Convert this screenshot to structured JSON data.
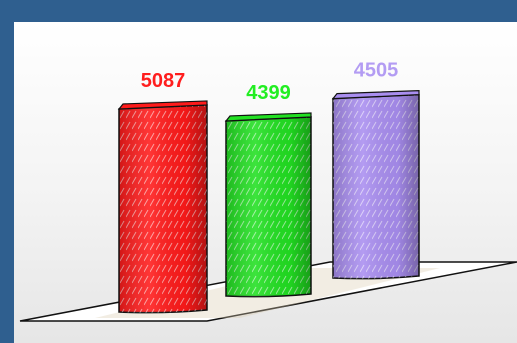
{
  "chart_data": {
    "type": "bar",
    "title": "",
    "xlabel": "",
    "ylabel": "",
    "categories": [
      "",
      "",
      ""
    ],
    "values": [
      5087,
      4399,
      4505
    ],
    "data_labels": [
      "5087",
      "4399",
      "4505"
    ],
    "colors": [
      "#ff1a1a",
      "#22e022",
      "#a98ef0"
    ],
    "label_colors": [
      "#ff1e1e",
      "#22ee22",
      "#b39cf3"
    ],
    "ylim": [
      0,
      5500
    ],
    "grid": false,
    "legend": "none",
    "style": "3d-cylinder"
  }
}
